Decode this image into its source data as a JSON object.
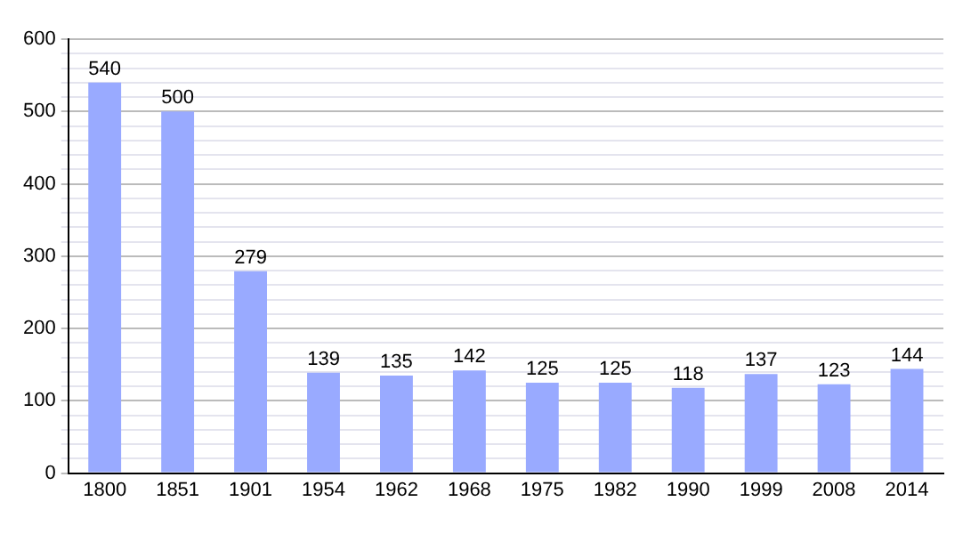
{
  "chart_data": {
    "type": "bar",
    "categories": [
      "1800",
      "1851",
      "1901",
      "1954",
      "1962",
      "1968",
      "1975",
      "1982",
      "1990",
      "1999",
      "2008",
      "2014"
    ],
    "values": [
      540,
      500,
      279,
      139,
      135,
      142,
      125,
      125,
      118,
      137,
      123,
      144
    ],
    "color": "#99aaff",
    "ylim": [
      0,
      600
    ],
    "yticks": [
      0,
      {
        "value": 20,
        "label": null
      },
      {
        "value": 40,
        "label": null
      },
      {
        "value": 60,
        "label": null
      },
      {
        "value": 80,
        "label": null
      },
      100,
      {
        "value": 120,
        "label": null
      },
      {
        "value": 140,
        "label": null
      },
      {
        "value": 160,
        "label": null
      },
      {
        "value": 180,
        "label": null
      },
      200,
      {
        "value": 220,
        "label": null
      },
      {
        "value": 240,
        "label": null
      },
      {
        "value": 260,
        "label": null
      },
      {
        "value": 280,
        "label": null
      },
      300,
      {
        "value": 320,
        "label": null
      },
      {
        "value": 340,
        "label": null
      },
      {
        "value": 360,
        "label": null
      },
      {
        "value": 380,
        "label": null
      },
      400,
      {
        "value": 420,
        "label": null
      },
      {
        "value": 440,
        "label": null
      },
      {
        "value": 460,
        "label": null
      },
      {
        "value": 480,
        "label": null
      },
      500,
      {
        "value": 520,
        "label": null
      },
      {
        "value": 540,
        "label": null
      },
      {
        "value": 560,
        "label": null
      },
      {
        "value": 580,
        "label": null
      },
      600
    ],
    "grid": "y",
    "data_labels": true
  }
}
